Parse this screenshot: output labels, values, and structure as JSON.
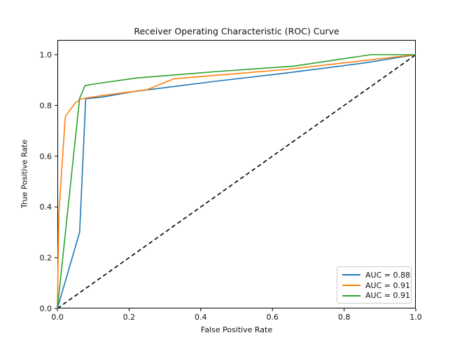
{
  "figure": {
    "title": "Receiver Operating Characteristic (ROC) Curve",
    "xlabel": "False Positive Rate",
    "ylabel": "True Positive Rate"
  },
  "legend": {
    "position": "lower right",
    "entries": [
      {
        "label": "AUC = 0.88",
        "color": "#1f77b4"
      },
      {
        "label": "AUC = 0.91",
        "color": "#ff7f0e"
      },
      {
        "label": "AUC = 0.91",
        "color": "#2ca02c"
      }
    ]
  },
  "chart_data": {
    "type": "line",
    "title": "Receiver Operating Characteristic (ROC) Curve",
    "xlabel": "False Positive Rate",
    "ylabel": "True Positive Rate",
    "xlim": [
      0.0,
      1.0
    ],
    "ylim": [
      0.0,
      1.058
    ],
    "xticks": [
      0.0,
      0.2,
      0.4,
      0.6,
      0.8,
      1.0
    ],
    "yticks": [
      0.0,
      0.2,
      0.4,
      0.6,
      0.8,
      1.0
    ],
    "grid": false,
    "legend_position": "lower right",
    "background": "#ffffff",
    "spine_color": "#000000",
    "series": [
      {
        "name": "AUC = 0.88",
        "color": "#1f77b4",
        "style": "solid",
        "points": [
          [
            0,
            0
          ],
          [
            0.062,
            0.3
          ],
          [
            0.079,
            0.826
          ],
          [
            0.13,
            0.834
          ],
          [
            0.21,
            0.854
          ],
          [
            0.44,
            0.895
          ],
          [
            0.64,
            0.928
          ],
          [
            0.86,
            0.968
          ],
          [
            1.0,
            1.0
          ]
        ]
      },
      {
        "name": "AUC = 0.91",
        "color": "#ff7f0e",
        "style": "solid",
        "points": [
          [
            0,
            0
          ],
          [
            0.004,
            0.372
          ],
          [
            0.022,
            0.756
          ],
          [
            0.05,
            0.81
          ],
          [
            0.066,
            0.826
          ],
          [
            0.13,
            0.84
          ],
          [
            0.25,
            0.862
          ],
          [
            0.325,
            0.905
          ],
          [
            0.64,
            0.942
          ],
          [
            1.0,
            1.0
          ]
        ]
      },
      {
        "name": "AUC = 0.91",
        "color": "#2ca02c",
        "style": "solid",
        "points": [
          [
            0,
            0
          ],
          [
            0.062,
            0.828
          ],
          [
            0.077,
            0.878
          ],
          [
            0.105,
            0.885
          ],
          [
            0.22,
            0.908
          ],
          [
            0.44,
            0.933
          ],
          [
            0.66,
            0.955
          ],
          [
            0.875,
            1.0
          ],
          [
            1.0,
            1.0
          ]
        ]
      }
    ],
    "reference_line": {
      "color": "#000000",
      "style": "dashed",
      "points": [
        [
          0,
          0
        ],
        [
          1.0,
          1.0
        ]
      ]
    }
  }
}
